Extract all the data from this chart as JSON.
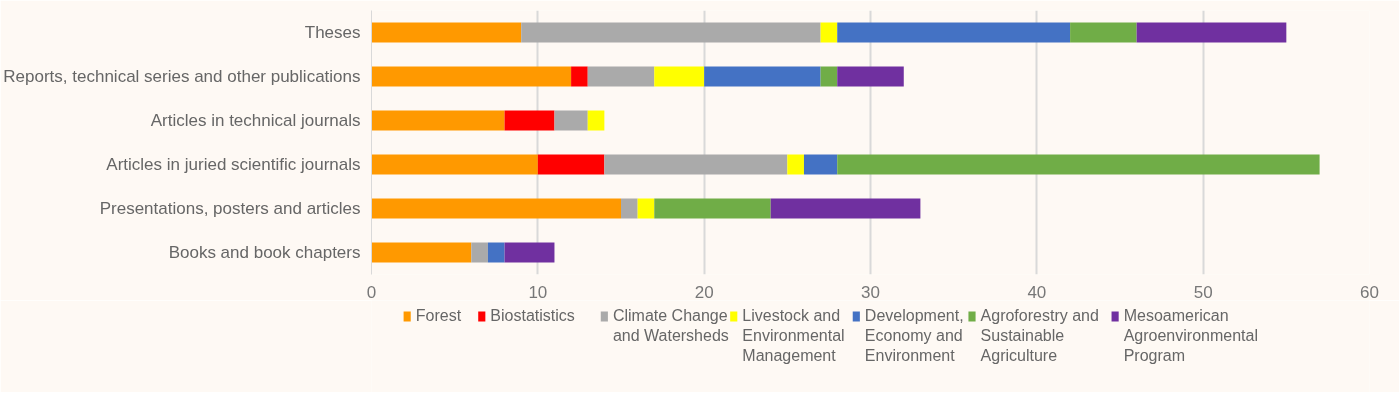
{
  "chart_data": {
    "type": "bar",
    "orientation": "horizontal",
    "stacked": true,
    "categories": [
      "Theses",
      "Reports, technical series and other publications",
      "Articles in technical journals",
      "Articles in juried scientific journals",
      "Presentations, posters and articles",
      "Books and book chapters"
    ],
    "series": [
      {
        "name": "Forest",
        "color": "#ff9900",
        "values": [
          9,
          12,
          8,
          10,
          15,
          6
        ]
      },
      {
        "name": "Biostatistics",
        "color": "#ff0000",
        "values": [
          0,
          1,
          3,
          4,
          0,
          0
        ]
      },
      {
        "name": "Climate Change and Watersheds",
        "color": "#aaaaaa",
        "values": [
          18,
          4,
          2,
          11,
          1,
          1
        ]
      },
      {
        "name": "Livestock and Environmental Management",
        "color": "#ffff00",
        "values": [
          1,
          3,
          1,
          1,
          1,
          0
        ]
      },
      {
        "name": "Development, Economy and Environment",
        "color": "#4472c4",
        "values": [
          14,
          7,
          0,
          2,
          0,
          1
        ]
      },
      {
        "name": "Agroforestry and Sustainable Agriculture",
        "color": "#70ad47",
        "values": [
          4,
          1,
          0,
          29,
          7,
          0
        ]
      },
      {
        "name": "Mesoamerican Agroenvironmental Program",
        "color": "#7030a0",
        "values": [
          9,
          4,
          0,
          0,
          9,
          3
        ]
      }
    ],
    "xlim": [
      0,
      60
    ],
    "xticks": [
      0,
      10,
      20,
      30,
      40,
      50,
      60
    ],
    "grid": "x",
    "legend": "bottom"
  }
}
